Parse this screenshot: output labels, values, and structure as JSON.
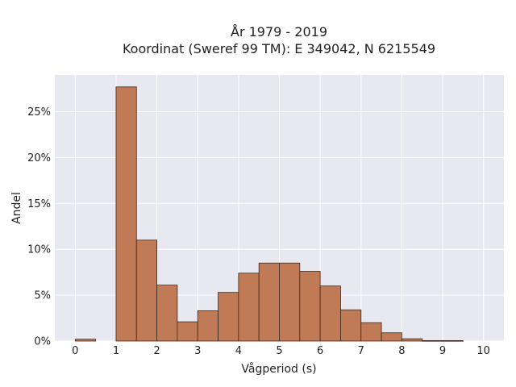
{
  "chart_data": {
    "type": "bar",
    "title": "År 1979 - 2019",
    "subtitle": "Koordinat (Sweref 99 TM): E 349042, N 6215549",
    "xlabel": "Vågperiod (s)",
    "ylabel": "Andel",
    "bin_width": 0.5,
    "bins": [
      {
        "x0": 0.0,
        "value": 0.2
      },
      {
        "x0": 0.5,
        "value": 0.0
      },
      {
        "x0": 1.0,
        "value": 27.7
      },
      {
        "x0": 1.5,
        "value": 11.0
      },
      {
        "x0": 2.0,
        "value": 6.1
      },
      {
        "x0": 2.5,
        "value": 2.1
      },
      {
        "x0": 3.0,
        "value": 3.3
      },
      {
        "x0": 3.5,
        "value": 5.3
      },
      {
        "x0": 4.0,
        "value": 7.4
      },
      {
        "x0": 4.5,
        "value": 8.5
      },
      {
        "x0": 5.0,
        "value": 8.5
      },
      {
        "x0": 5.5,
        "value": 7.6
      },
      {
        "x0": 6.0,
        "value": 6.0
      },
      {
        "x0": 6.5,
        "value": 3.4
      },
      {
        "x0": 7.0,
        "value": 2.0
      },
      {
        "x0": 7.5,
        "value": 0.9
      },
      {
        "x0": 8.0,
        "value": 0.25
      },
      {
        "x0": 8.5,
        "value": 0.05
      },
      {
        "x0": 9.0,
        "value": 0.05
      }
    ],
    "xlim": [
      -0.5,
      10.5
    ],
    "ylim": [
      0,
      29
    ],
    "xticks": [
      "0",
      "1",
      "2",
      "3",
      "4",
      "5",
      "6",
      "7",
      "8",
      "9",
      "10"
    ],
    "yticks": [
      "0%",
      "5%",
      "10%",
      "15%",
      "20%",
      "25%"
    ],
    "bar_color": "#c07a55",
    "bar_edge_color": "#3a2a20",
    "plot_background": "#e8e8f0",
    "grid": true
  }
}
